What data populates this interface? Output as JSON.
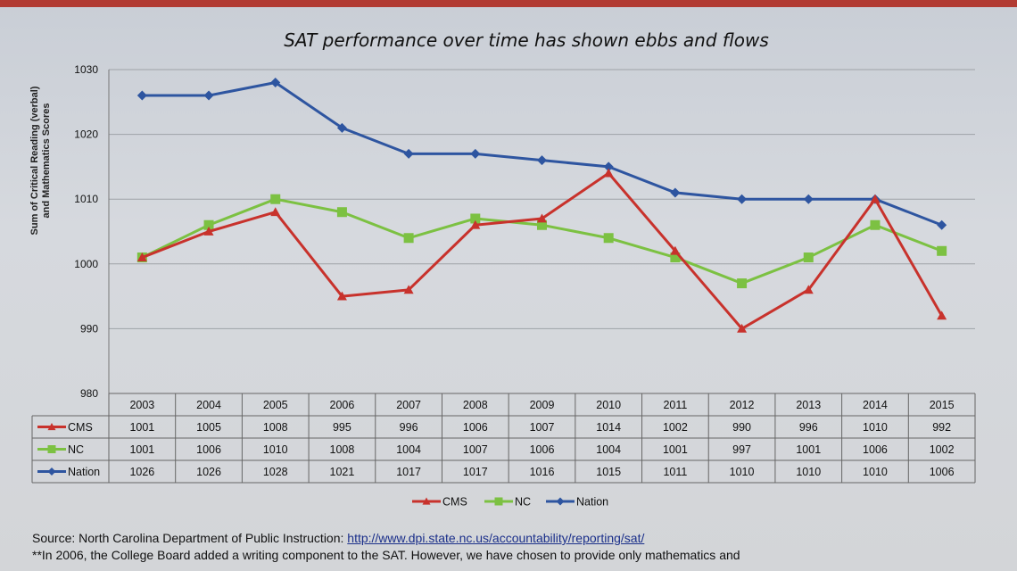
{
  "chart_data": {
    "type": "line",
    "title": "SAT performance over time has shown ebbs and flows",
    "ylabel": "Sum of Critical Reading (verbal) and Mathematics Scores",
    "xlabel": "",
    "ylim": [
      980,
      1030
    ],
    "yticks": [
      980,
      990,
      1000,
      1010,
      1020,
      1030
    ],
    "categories": [
      "2003",
      "2004",
      "2005",
      "2006",
      "2007",
      "2008",
      "2009",
      "2010",
      "2011",
      "2012",
      "2013",
      "2014",
      "2015"
    ],
    "grid": true,
    "legend_position": "bottom",
    "series": [
      {
        "name": "CMS",
        "color": "#c8322c",
        "marker": "triangle",
        "values": [
          1001,
          1005,
          1008,
          995,
          996,
          1006,
          1007,
          1014,
          1002,
          990,
          996,
          1010,
          992
        ]
      },
      {
        "name": "NC",
        "color": "#7cc142",
        "marker": "square",
        "values": [
          1001,
          1006,
          1010,
          1008,
          1004,
          1007,
          1006,
          1004,
          1001,
          997,
          1001,
          1006,
          1002
        ]
      },
      {
        "name": "Nation",
        "color": "#2e55a0",
        "marker": "diamond",
        "values": [
          1026,
          1026,
          1028,
          1021,
          1017,
          1017,
          1016,
          1015,
          1011,
          1010,
          1010,
          1010,
          1006
        ]
      }
    ]
  },
  "footer": {
    "source_prefix": "Source: North Carolina Department of Public Instruction: ",
    "source_link": "http://www.dpi.state.nc.us/accountability/reporting/sat/",
    "note": "**In 2006, the College Board added a writing component to the SAT.  However, we have chosen to provide only mathematics and"
  }
}
